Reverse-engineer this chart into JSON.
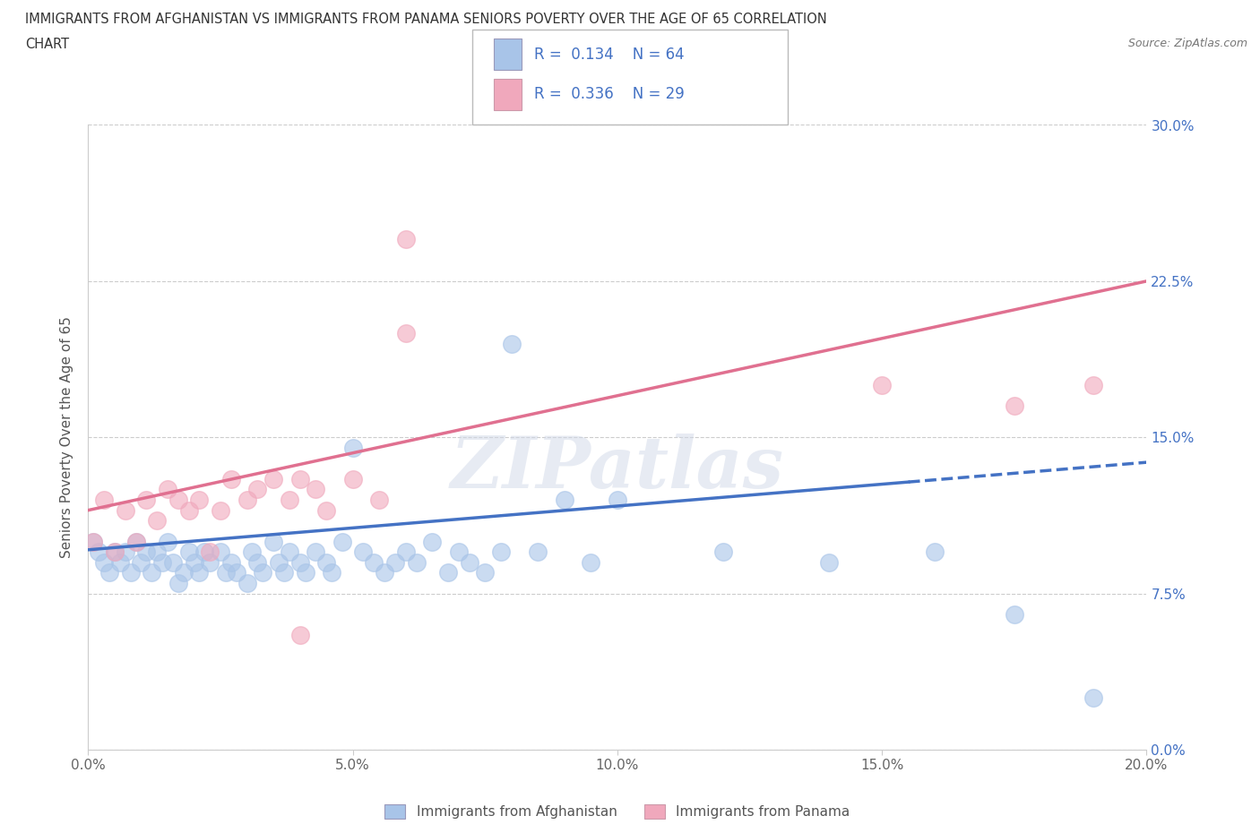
{
  "title_line1": "IMMIGRANTS FROM AFGHANISTAN VS IMMIGRANTS FROM PANAMA SENIORS POVERTY OVER THE AGE OF 65 CORRELATION",
  "title_line2": "CHART",
  "source_text": "Source: ZipAtlas.com",
  "ylabel": "Seniors Poverty Over the Age of 65",
  "xlim": [
    0.0,
    0.2
  ],
  "ylim": [
    0.0,
    0.3
  ],
  "xticks": [
    0.0,
    0.05,
    0.1,
    0.15,
    0.2
  ],
  "yticks": [
    0.0,
    0.075,
    0.15,
    0.225,
    0.3
  ],
  "xtick_labels": [
    "0.0%",
    "5.0%",
    "10.0%",
    "15.0%",
    "20.0%"
  ],
  "ytick_labels_right": [
    "0.0%",
    "7.5%",
    "15.0%",
    "22.5%",
    "30.0%"
  ],
  "afghanistan_color": "#a8c4e8",
  "panama_color": "#f0a8bc",
  "afghanistan_line_color": "#4472c4",
  "panama_line_color": "#e07090",
  "watermark": "ZIPatlas",
  "legend_R_afghanistan": "0.134",
  "legend_N_afghanistan": "64",
  "legend_R_panama": "0.336",
  "legend_N_panama": "29",
  "afg_trend_x0": 0.0,
  "afg_trend_y0": 0.096,
  "afg_trend_x1": 0.2,
  "afg_trend_y1": 0.138,
  "pan_trend_x0": 0.0,
  "pan_trend_y0": 0.115,
  "pan_trend_x1": 0.2,
  "pan_trend_y1": 0.225,
  "afghanistan_scatter_x": [
    0.001,
    0.002,
    0.003,
    0.004,
    0.005,
    0.006,
    0.007,
    0.008,
    0.009,
    0.01,
    0.011,
    0.012,
    0.013,
    0.014,
    0.015,
    0.016,
    0.017,
    0.018,
    0.019,
    0.02,
    0.021,
    0.022,
    0.023,
    0.025,
    0.026,
    0.027,
    0.028,
    0.03,
    0.031,
    0.032,
    0.033,
    0.035,
    0.036,
    0.037,
    0.038,
    0.04,
    0.041,
    0.043,
    0.045,
    0.046,
    0.048,
    0.05,
    0.052,
    0.054,
    0.056,
    0.058,
    0.06,
    0.062,
    0.065,
    0.068,
    0.07,
    0.072,
    0.075,
    0.078,
    0.08,
    0.085,
    0.09,
    0.095,
    0.1,
    0.12,
    0.14,
    0.16,
    0.175,
    0.19
  ],
  "afghanistan_scatter_y": [
    0.1,
    0.095,
    0.09,
    0.085,
    0.095,
    0.09,
    0.095,
    0.085,
    0.1,
    0.09,
    0.095,
    0.085,
    0.095,
    0.09,
    0.1,
    0.09,
    0.08,
    0.085,
    0.095,
    0.09,
    0.085,
    0.095,
    0.09,
    0.095,
    0.085,
    0.09,
    0.085,
    0.08,
    0.095,
    0.09,
    0.085,
    0.1,
    0.09,
    0.085,
    0.095,
    0.09,
    0.085,
    0.095,
    0.09,
    0.085,
    0.1,
    0.145,
    0.095,
    0.09,
    0.085,
    0.09,
    0.095,
    0.09,
    0.1,
    0.085,
    0.095,
    0.09,
    0.085,
    0.095,
    0.195,
    0.095,
    0.12,
    0.09,
    0.12,
    0.095,
    0.09,
    0.095,
    0.065,
    0.025
  ],
  "panama_scatter_x": [
    0.001,
    0.003,
    0.005,
    0.007,
    0.009,
    0.011,
    0.013,
    0.015,
    0.017,
    0.019,
    0.021,
    0.023,
    0.025,
    0.027,
    0.03,
    0.032,
    0.035,
    0.038,
    0.04,
    0.043,
    0.045,
    0.05,
    0.055,
    0.06,
    0.04,
    0.06,
    0.15,
    0.175,
    0.19
  ],
  "panama_scatter_y": [
    0.1,
    0.12,
    0.095,
    0.115,
    0.1,
    0.12,
    0.11,
    0.125,
    0.12,
    0.115,
    0.12,
    0.095,
    0.115,
    0.13,
    0.12,
    0.125,
    0.13,
    0.12,
    0.13,
    0.125,
    0.115,
    0.13,
    0.12,
    0.245,
    0.055,
    0.2,
    0.175,
    0.165,
    0.175
  ]
}
